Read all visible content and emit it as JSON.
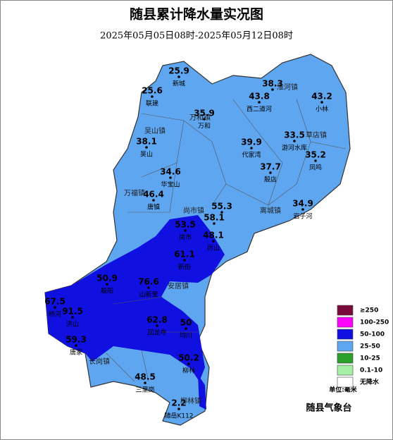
{
  "header": {
    "title": "随县累计降水量实况图",
    "subtitle": "2025年05月05日08时-2025年05月12日08时"
  },
  "stations": [
    {
      "value": "25.9",
      "name": "新城"
    },
    {
      "value": "25.6",
      "name": "联建"
    },
    {
      "value": "38.3"
    },
    {
      "value": "43.8",
      "name": "西二道河"
    },
    {
      "value": "43.2",
      "name": "小林"
    },
    {
      "value": "35.9",
      "name": "万和"
    },
    {
      "value": "38.1",
      "name": "吴山"
    },
    {
      "value": "39.9",
      "name": "代家湾"
    },
    {
      "value": "33.5",
      "name": "游河水库"
    },
    {
      "value": "35.2",
      "name": "凤鸣"
    },
    {
      "value": "37.7",
      "name": "殷店"
    },
    {
      "value": "34.6",
      "name": "华宝山"
    },
    {
      "value": "46.4",
      "name": "唐镇"
    },
    {
      "value": "34.9",
      "name": "岩子河"
    },
    {
      "value": "55.3"
    },
    {
      "value": "58.1"
    },
    {
      "value": "53.5",
      "name": "尚市"
    },
    {
      "value": "48.1",
      "name": "厉山"
    },
    {
      "value": "61.1",
      "name": "新街"
    },
    {
      "value": "50.9",
      "name": "殷阳"
    },
    {
      "value": "76.6",
      "name": "山新里"
    },
    {
      "value": "67.5",
      "name": "桥河"
    },
    {
      "value": "91.5",
      "name": "洪山"
    },
    {
      "value": "62.8",
      "name": "回龙寺"
    },
    {
      "value": "50",
      "name": "均川"
    },
    {
      "value": "59.3",
      "name": "唐家"
    },
    {
      "value": "50.2",
      "name": "柳林"
    },
    {
      "value": "48.5",
      "name": "三里岗"
    },
    {
      "value": "2.2",
      "name": "随岳K112"
    }
  ],
  "towns": [
    "淮河镇",
    "草店镇",
    "万和镇",
    "吴山镇",
    "万福镇",
    "尚市镇",
    "离城镇",
    "安居镇",
    "长岗镇",
    "柳林镇"
  ],
  "legend": {
    "items": [
      {
        "label": "≥250",
        "color": "#7a0a3c"
      },
      {
        "label": "100-250",
        "color": "#ff00ff"
      },
      {
        "label": "50-100",
        "color": "#1010e0"
      },
      {
        "label": "25-50",
        "color": "#5fa6f0"
      },
      {
        "label": "10-25",
        "color": "#2aa02a"
      },
      {
        "label": "0.1-10",
        "color": "#a6f0a6"
      },
      {
        "label": "无降水",
        "color": "#ffffff"
      }
    ],
    "unit": "单位:毫米"
  },
  "footer": {
    "agency": "随县气象台"
  }
}
